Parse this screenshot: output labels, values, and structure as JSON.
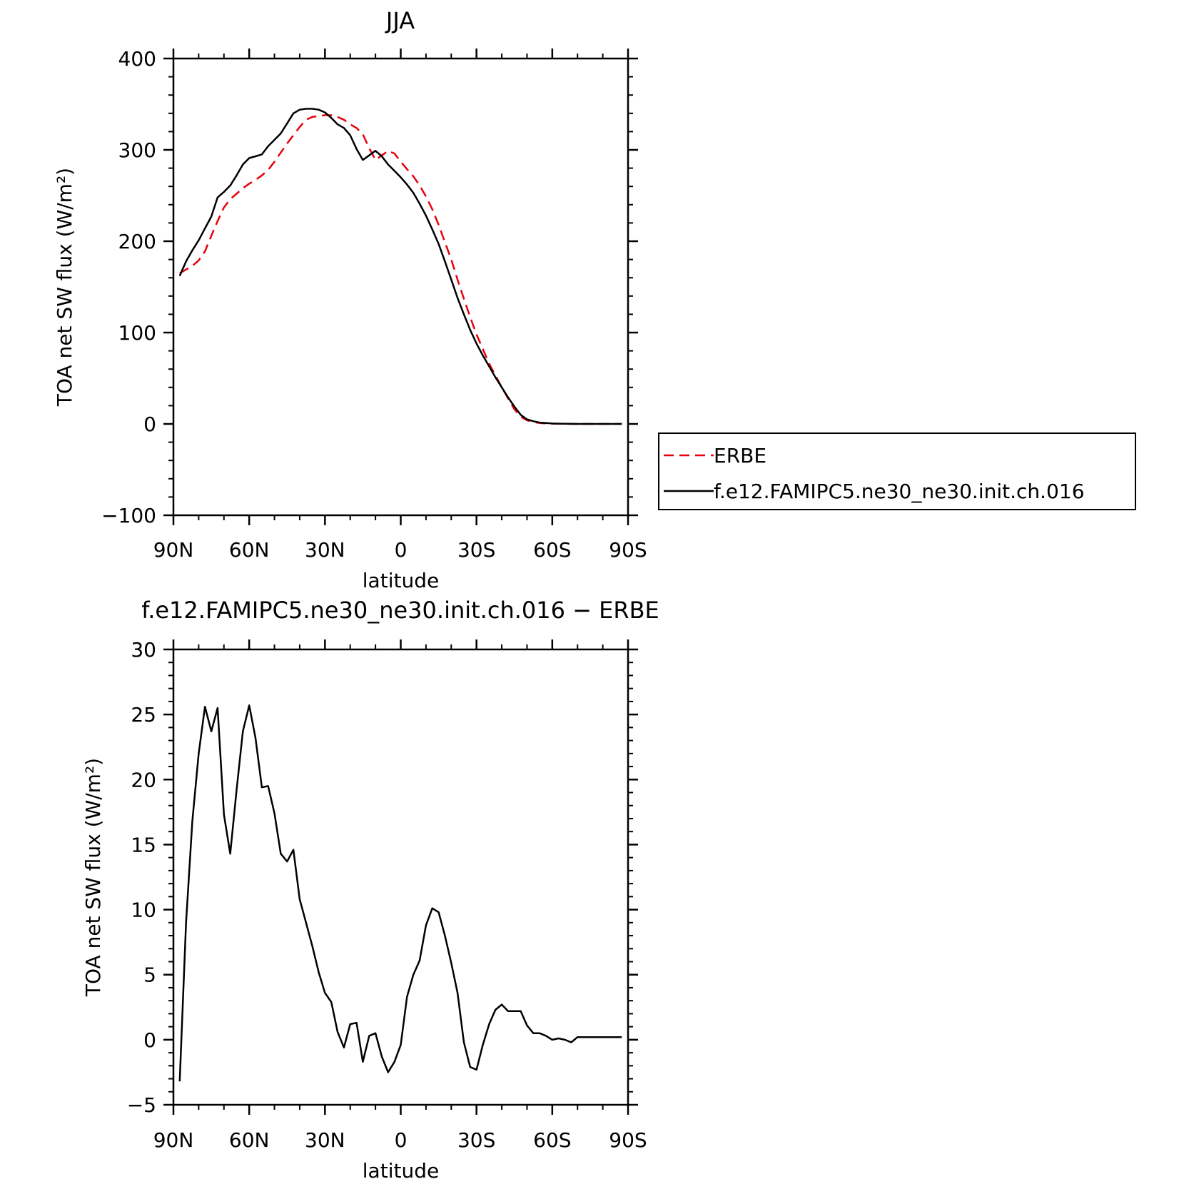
{
  "chart_data": [
    {
      "type": "line",
      "title": "JJA",
      "xlabel": "latitude",
      "ylabel": "TOA net SW flux (W/m²)",
      "xlim": [
        90,
        -90
      ],
      "ylim": [
        -100,
        400
      ],
      "xticks": [
        90,
        60,
        30,
        0,
        -30,
        -60,
        -90
      ],
      "xtick_labels": [
        "90N",
        "60N",
        "30N",
        "0",
        "30S",
        "60S",
        "90S"
      ],
      "yticks": [
        -100,
        0,
        100,
        200,
        300,
        400
      ],
      "ytick_labels": [
        "−100",
        "0",
        "100",
        "200",
        "300",
        "400"
      ],
      "legend": {
        "position": "right",
        "entries": [
          "ERBE",
          "f.e12.FAMIPC5.ne30_ne30.init.ch.016"
        ]
      },
      "series": [
        {
          "name": "ERBE",
          "color": "#e8000b",
          "dash": "dashed",
          "x": [
            87.5,
            85,
            82.5,
            80,
            77.5,
            75,
            72.5,
            70,
            67.5,
            65,
            62.5,
            60,
            57.5,
            55,
            52.5,
            50,
            47.5,
            45,
            42.5,
            40,
            37.5,
            35,
            32.5,
            30,
            27.5,
            25,
            22.5,
            20,
            17.5,
            15,
            12.5,
            10,
            7.5,
            5,
            2.5,
            0,
            -2.5,
            -5,
            -7.5,
            -10,
            -12.5,
            -15,
            -17.5,
            -20,
            -22.5,
            -25,
            -27.5,
            -30,
            -32.5,
            -35,
            -37.5,
            -40,
            -42.5,
            -45,
            -47.5,
            -50,
            -52.5,
            -55,
            -57.5,
            -60,
            -62.5,
            -65,
            -67.5,
            -70,
            -72.5,
            -75,
            -77.5,
            -80,
            -82.5,
            -85,
            -87.5
          ],
          "y": [
            165,
            169,
            173,
            179,
            189,
            206,
            222,
            237,
            246,
            252,
            258,
            263,
            267,
            272,
            278,
            287,
            297,
            307,
            316,
            325,
            333,
            336,
            337,
            338,
            338,
            336,
            333,
            328,
            324,
            317,
            302,
            289,
            294,
            299,
            296,
            287,
            279,
            271,
            261,
            249,
            235,
            218,
            199,
            180,
            158,
            137,
            117,
            98,
            82,
            66,
            53,
            40,
            28,
            16,
            8,
            4,
            2,
            1,
            0.5,
            0.3,
            0.2,
            0.1,
            0,
            0,
            0,
            0,
            0,
            0,
            0,
            0,
            0
          ]
        },
        {
          "name": "f.e12.FAMIPC5.ne30_ne30.init.ch.016",
          "color": "#000000",
          "dash": "solid",
          "x": [
            87.5,
            85,
            82.5,
            80,
            77.5,
            75,
            72.5,
            70,
            67.5,
            65,
            62.5,
            60,
            57.5,
            55,
            52.5,
            50,
            47.5,
            45,
            42.5,
            40,
            37.5,
            35,
            32.5,
            30,
            27.5,
            25,
            22.5,
            20,
            17.5,
            15,
            12.5,
            10,
            7.5,
            5,
            2.5,
            0,
            -2.5,
            -5,
            -7.5,
            -10,
            -12.5,
            -15,
            -17.5,
            -20,
            -22.5,
            -25,
            -27.5,
            -30,
            -32.5,
            -35,
            -37.5,
            -40,
            -42.5,
            -45,
            -47.5,
            -50,
            -52.5,
            -55,
            -57.5,
            -60,
            -62.5,
            -65,
            -67.5,
            -70,
            -72.5,
            -75,
            -77.5,
            -80,
            -82.5,
            -85,
            -87.5
          ],
          "y": [
            162,
            178,
            190,
            201,
            214,
            227,
            248,
            254,
            261,
            272,
            284,
            291,
            293,
            295,
            304,
            311,
            318,
            329,
            340,
            344,
            345,
            345,
            344,
            341,
            335,
            328,
            324,
            316,
            301,
            289,
            294,
            299,
            293,
            284,
            277,
            270,
            262,
            253,
            241,
            228,
            213,
            197,
            178,
            158,
            138,
            120,
            103,
            88,
            75,
            63,
            51,
            40,
            29,
            19,
            10,
            5,
            3,
            1.5,
            1,
            0.5,
            0.3,
            0.2,
            0.1,
            0,
            0,
            0,
            0,
            0,
            0,
            0,
            0
          ]
        }
      ]
    },
    {
      "type": "line",
      "title": "f.e12.FAMIPC5.ne30_ne30.init.ch.016 − ERBE",
      "xlabel": "latitude",
      "ylabel": "TOA net SW flux (W/m²)",
      "xlim": [
        90,
        -90
      ],
      "ylim": [
        -5,
        30
      ],
      "xticks": [
        90,
        60,
        30,
        0,
        -30,
        -60,
        -90
      ],
      "xtick_labels": [
        "90N",
        "60N",
        "30N",
        "0",
        "30S",
        "60S",
        "90S"
      ],
      "yticks": [
        -5,
        0,
        5,
        10,
        15,
        20,
        25,
        30
      ],
      "ytick_labels": [
        "−5",
        "0",
        "5",
        "10",
        "15",
        "20",
        "25",
        "30"
      ],
      "series": [
        {
          "color": "#000000",
          "dash": "solid",
          "x": [
            87.5,
            85,
            82.5,
            80,
            77.5,
            75,
            72.5,
            70,
            67.5,
            65,
            62.5,
            60,
            57.5,
            55,
            52.5,
            50,
            47.5,
            45,
            42.5,
            40,
            37.5,
            35,
            32.5,
            30,
            27.5,
            25,
            22.5,
            20,
            17.5,
            15,
            12.5,
            10,
            7.5,
            5,
            2.5,
            0,
            -2.5,
            -5,
            -7.5,
            -10,
            -12.5,
            -15,
            -17.5,
            -20,
            -22.5,
            -25,
            -27.5,
            -30,
            -32.5,
            -35,
            -37.5,
            -40,
            -42.5,
            -45,
            -47.5,
            -50,
            -52.5,
            -55,
            -57.5,
            -60,
            -62.5,
            -65,
            -67.5,
            -70,
            -72.5,
            -75,
            -77.5,
            -80,
            -82.5,
            -85,
            -87.5
          ],
          "y": [
            -3.2,
            9,
            16.8,
            22,
            25.6,
            23.7,
            25.5,
            17.3,
            14.3,
            19.2,
            23.7,
            25.7,
            23.2,
            19.4,
            19.5,
            17.4,
            14.3,
            13.7,
            14.6,
            10.8,
            9,
            7.2,
            5.2,
            3.6,
            2.9,
            0.6,
            -0.6,
            1.2,
            1.3,
            -1.7,
            0.3,
            0.5,
            -1.3,
            -2.5,
            -1.7,
            -0.4,
            3.3,
            5,
            6.1,
            8.8,
            10.1,
            9.8,
            8,
            5.9,
            3.6,
            -0.2,
            -2.1,
            -2.3,
            -0.4,
            1.2,
            2.3,
            2.7,
            2.2,
            2.2,
            2.2,
            1.1,
            0.5,
            0.5,
            0.3,
            0,
            0.1,
            0,
            -0.2,
            0.2,
            0.2,
            0.2,
            0.2,
            0.2,
            0.2,
            0.2,
            0.2
          ]
        }
      ]
    }
  ]
}
